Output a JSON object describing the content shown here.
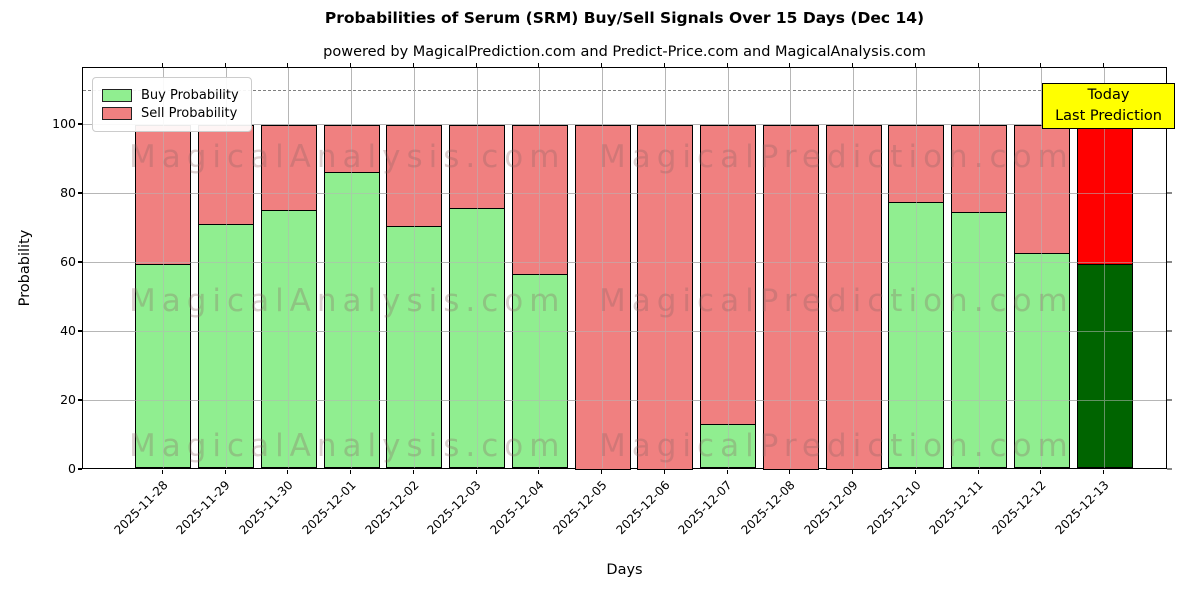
{
  "title": "Probabilities of Serum (SRM) Buy/Sell Signals Over 15 Days (Dec 14)",
  "subtitle": "powered by MagicalPrediction.com and Predict-Price.com and MagicalAnalysis.com",
  "legend": {
    "items": [
      {
        "label": "Buy Probability",
        "color": "#90EE90"
      },
      {
        "label": "Sell Probability",
        "color": "#F08080"
      }
    ]
  },
  "annotation": {
    "line1": "Today",
    "line2": "Last Prediction",
    "bg_color": "#FFFF00"
  },
  "watermarks": {
    "left_text": "MagicalAnalysis.com",
    "right_text": "MagicalPrediction.com"
  },
  "colors": {
    "buy": "#90EE90",
    "sell": "#F08080",
    "buy_today": "#006400",
    "sell_today": "#FF0000",
    "bar_edge": "#000000",
    "grid": "#b6b6b6",
    "dashed_line": "#7f7f7f",
    "annotation_bg": "#FFFF00"
  },
  "chart_data": {
    "type": "bar",
    "stacked": true,
    "title": "Probabilities of Serum (SRM) Buy/Sell Signals Over 15 Days (Dec 14)",
    "subtitle": "powered by MagicalPrediction.com and Predict-Price.com and MagicalAnalysis.com",
    "xlabel": "Days",
    "ylabel": "Probability",
    "categories": [
      "2025-11-28",
      "2025-11-29",
      "2025-11-30",
      "2025-12-01",
      "2025-12-02",
      "2025-12-03",
      "2025-12-04",
      "2025-12-05",
      "2025-12-06",
      "2025-12-07",
      "2025-12-08",
      "2025-12-09",
      "2025-12-10",
      "2025-12-11",
      "2025-12-12",
      "2025-12-13"
    ],
    "series": [
      {
        "name": "Buy Probability",
        "color": "#90EE90",
        "values": [
          59.5,
          71,
          75,
          86,
          70.5,
          75.5,
          56.5,
          0,
          0,
          13,
          0,
          0,
          77.5,
          74.5,
          62.5,
          59.5
        ]
      },
      {
        "name": "Sell Probability",
        "color": "#F08080",
        "values": [
          40.5,
          29,
          25,
          14,
          29.5,
          24.5,
          43.5,
          100,
          100,
          87,
          100,
          100,
          22.5,
          25.5,
          37.5,
          40.5
        ]
      }
    ],
    "today_index": 15,
    "today_colors": {
      "buy": "#006400",
      "sell": "#FF0000"
    },
    "yticks": [
      0,
      20,
      40,
      60,
      80,
      100
    ],
    "ylim": [
      0,
      116.5
    ],
    "dashed_hline_y": 110,
    "grid": true,
    "legend_position": "upper left"
  }
}
